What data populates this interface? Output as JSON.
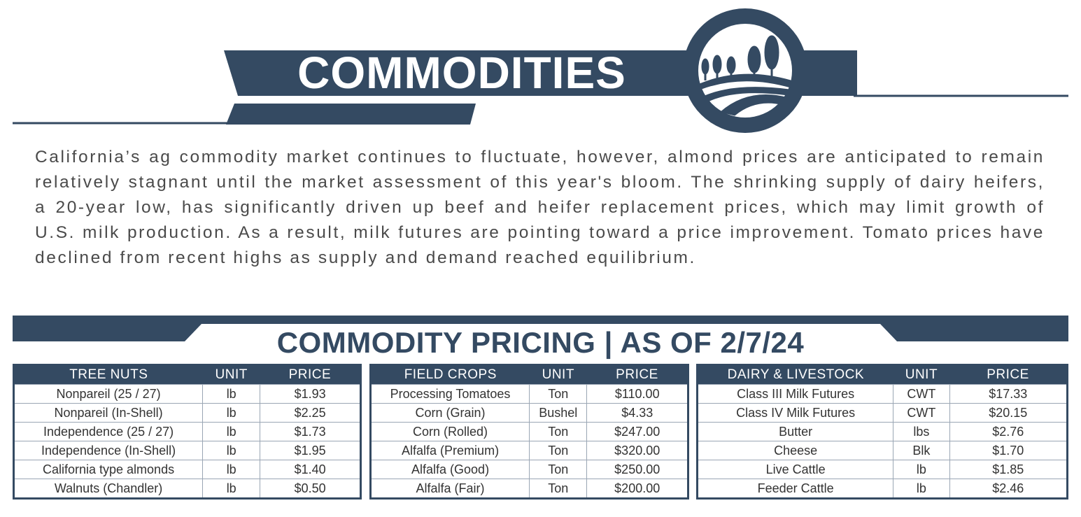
{
  "header": {
    "title": "COMMODITIES"
  },
  "intro": "California’s ag commodity market continues to fluctuate, however, almond prices are anticipated to remain relatively stagnant until the market assessment of this year's bloom.  The shrinking supply of dairy heifers, a 20-year low, has significantly driven up beef and heifer replacement prices, which may limit growth of U.S. milk production. As a result, milk futures are pointing toward a price improvement. Tomato prices have declined from recent highs as supply and demand reached equilibrium.",
  "pricing": {
    "title": "COMMODITY PRICING | AS OF 2/7/24",
    "tables": [
      {
        "columns": [
          "TREE NUTS",
          "UNIT",
          "PRICE"
        ],
        "rows": [
          [
            "Nonpareil (25 / 27)",
            "lb",
            "$1.93"
          ],
          [
            "Nonpareil (In-Shell)",
            "lb",
            "$2.25"
          ],
          [
            "Independence (25 / 27)",
            "lb",
            "$1.73"
          ],
          [
            "Independence (In-Shell)",
            "lb",
            "$1.95"
          ],
          [
            "California type almonds",
            "lb",
            "$1.40"
          ],
          [
            "Walnuts (Chandler)",
            "lb",
            "$0.50"
          ]
        ]
      },
      {
        "columns": [
          "FIELD CROPS",
          "UNIT",
          "PRICE"
        ],
        "rows": [
          [
            "Processing Tomatoes",
            "Ton",
            "$110.00"
          ],
          [
            "Corn (Grain)",
            "Bushel",
            "$4.33"
          ],
          [
            "Corn (Rolled)",
            "Ton",
            "$247.00"
          ],
          [
            "Alfalfa (Premium)",
            "Ton",
            "$320.00"
          ],
          [
            "Alfalfa (Good)",
            "Ton",
            "$250.00"
          ],
          [
            "Alfalfa (Fair)",
            "Ton",
            "$200.00"
          ]
        ]
      },
      {
        "columns": [
          "DAIRY & LIVESTOCK",
          "UNIT",
          "PRICE"
        ],
        "rows": [
          [
            "Class III Milk Futures",
            "CWT",
            "$17.33"
          ],
          [
            "Class IV Milk Futures",
            "CWT",
            "$20.15"
          ],
          [
            "Butter",
            "lbs",
            "$2.76"
          ],
          [
            "Cheese",
            "Blk",
            "$1.70"
          ],
          [
            "Live Cattle",
            "lb",
            "$1.85"
          ],
          [
            "Feeder Cattle",
            "lb",
            "$2.46"
          ]
        ]
      }
    ]
  }
}
